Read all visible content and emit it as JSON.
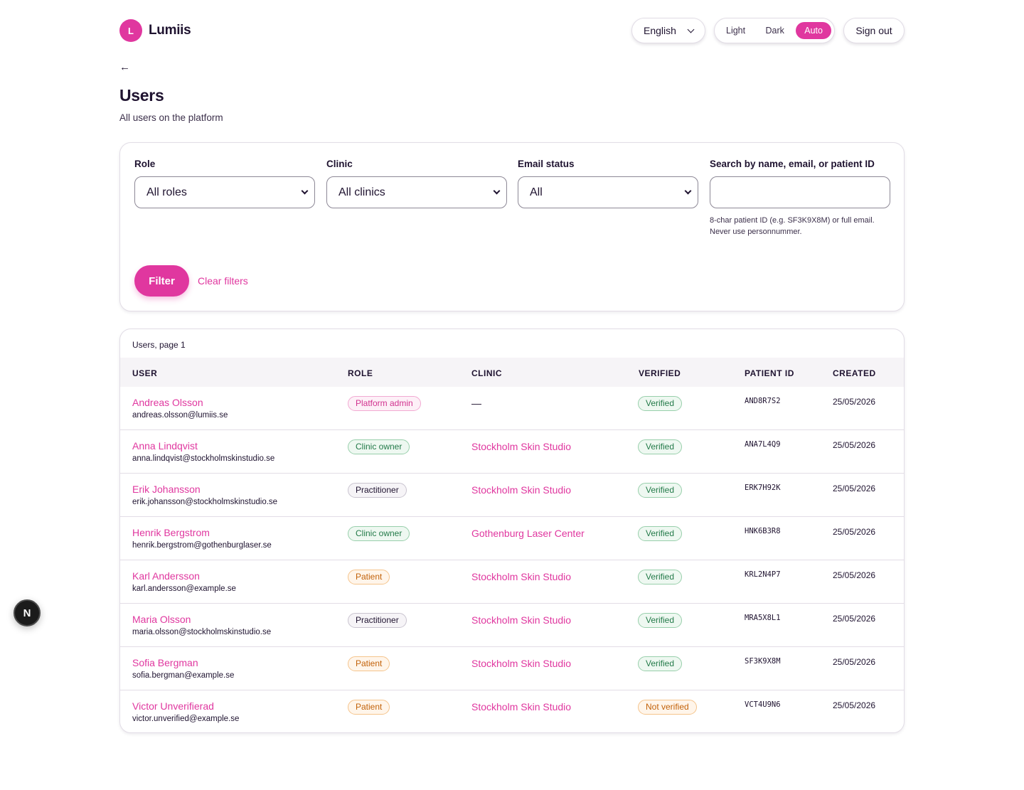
{
  "header": {
    "logo_letter": "L",
    "brand": "Lumiis",
    "language": "English",
    "theme_options": [
      "Light",
      "Dark",
      "Auto"
    ],
    "theme_active": "Auto",
    "sign_out": "Sign out"
  },
  "back_label": "←",
  "page": {
    "title": "Users",
    "subtitle": "All users on the platform"
  },
  "filters": {
    "role": {
      "label": "Role",
      "value": "All roles"
    },
    "clinic": {
      "label": "Clinic",
      "value": "All clinics"
    },
    "email_status": {
      "label": "Email status",
      "value": "All"
    },
    "search": {
      "label": "Search by name, email, or patient ID",
      "value": "",
      "help": "8-char patient ID (e.g. SF3K9X8M) or full email. Never use personnummer."
    },
    "filter_button": "Filter",
    "clear_link": "Clear filters"
  },
  "table": {
    "caption": "Users, page 1",
    "headers": {
      "user": "USER",
      "role": "ROLE",
      "clinic": "CLINIC",
      "verified": "VERIFIED",
      "patient_id": "PATIENT ID",
      "created": "CREATED"
    },
    "rows": [
      {
        "name": "Andreas Olsson",
        "email": "andreas.olsson@lumiis.se",
        "role": "Platform admin",
        "role_kind": "admin",
        "clinic": "—",
        "verified": "Verified",
        "verified_kind": "ver",
        "patient_id": "AND8R7S2",
        "created": "25/05/2026"
      },
      {
        "name": "Anna Lindqvist",
        "email": "anna.lindqvist@stockholmskinstudio.se",
        "role": "Clinic owner",
        "role_kind": "owner",
        "clinic": "Stockholm Skin Studio",
        "verified": "Verified",
        "verified_kind": "ver",
        "patient_id": "ANA7L4Q9",
        "created": "25/05/2026"
      },
      {
        "name": "Erik Johansson",
        "email": "erik.johansson@stockholmskinstudio.se",
        "role": "Practitioner",
        "role_kind": "pract",
        "clinic": "Stockholm Skin Studio",
        "verified": "Verified",
        "verified_kind": "ver",
        "patient_id": "ERK7H92K",
        "created": "25/05/2026"
      },
      {
        "name": "Henrik Bergstrom",
        "email": "henrik.bergstrom@gothenburglaser.se",
        "role": "Clinic owner",
        "role_kind": "owner",
        "clinic": "Gothenburg Laser Center",
        "verified": "Verified",
        "verified_kind": "ver",
        "patient_id": "HNK6B3R8",
        "created": "25/05/2026"
      },
      {
        "name": "Karl Andersson",
        "email": "karl.andersson@example.se",
        "role": "Patient",
        "role_kind": "patient",
        "clinic": "Stockholm Skin Studio",
        "verified": "Verified",
        "verified_kind": "ver",
        "patient_id": "KRL2N4P7",
        "created": "25/05/2026"
      },
      {
        "name": "Maria Olsson",
        "email": "maria.olsson@stockholmskinstudio.se",
        "role": "Practitioner",
        "role_kind": "pract",
        "clinic": "Stockholm Skin Studio",
        "verified": "Verified",
        "verified_kind": "ver",
        "patient_id": "MRA5X8L1",
        "created": "25/05/2026"
      },
      {
        "name": "Sofia Bergman",
        "email": "sofia.bergman@example.se",
        "role": "Patient",
        "role_kind": "patient",
        "clinic": "Stockholm Skin Studio",
        "verified": "Verified",
        "verified_kind": "ver",
        "patient_id": "SF3K9X8M",
        "created": "25/05/2026"
      },
      {
        "name": "Victor Unverifierad",
        "email": "victor.unverified@example.se",
        "role": "Patient",
        "role_kind": "patient",
        "clinic": "Stockholm Skin Studio",
        "verified": "Not verified",
        "verified_kind": "notver",
        "patient_id": "VCT4U9N6",
        "created": "25/05/2026"
      }
    ]
  },
  "dev_badge": "N",
  "colors": {
    "accent": "#e0379f",
    "text": "#1f1330",
    "border": "#e2dde6"
  }
}
